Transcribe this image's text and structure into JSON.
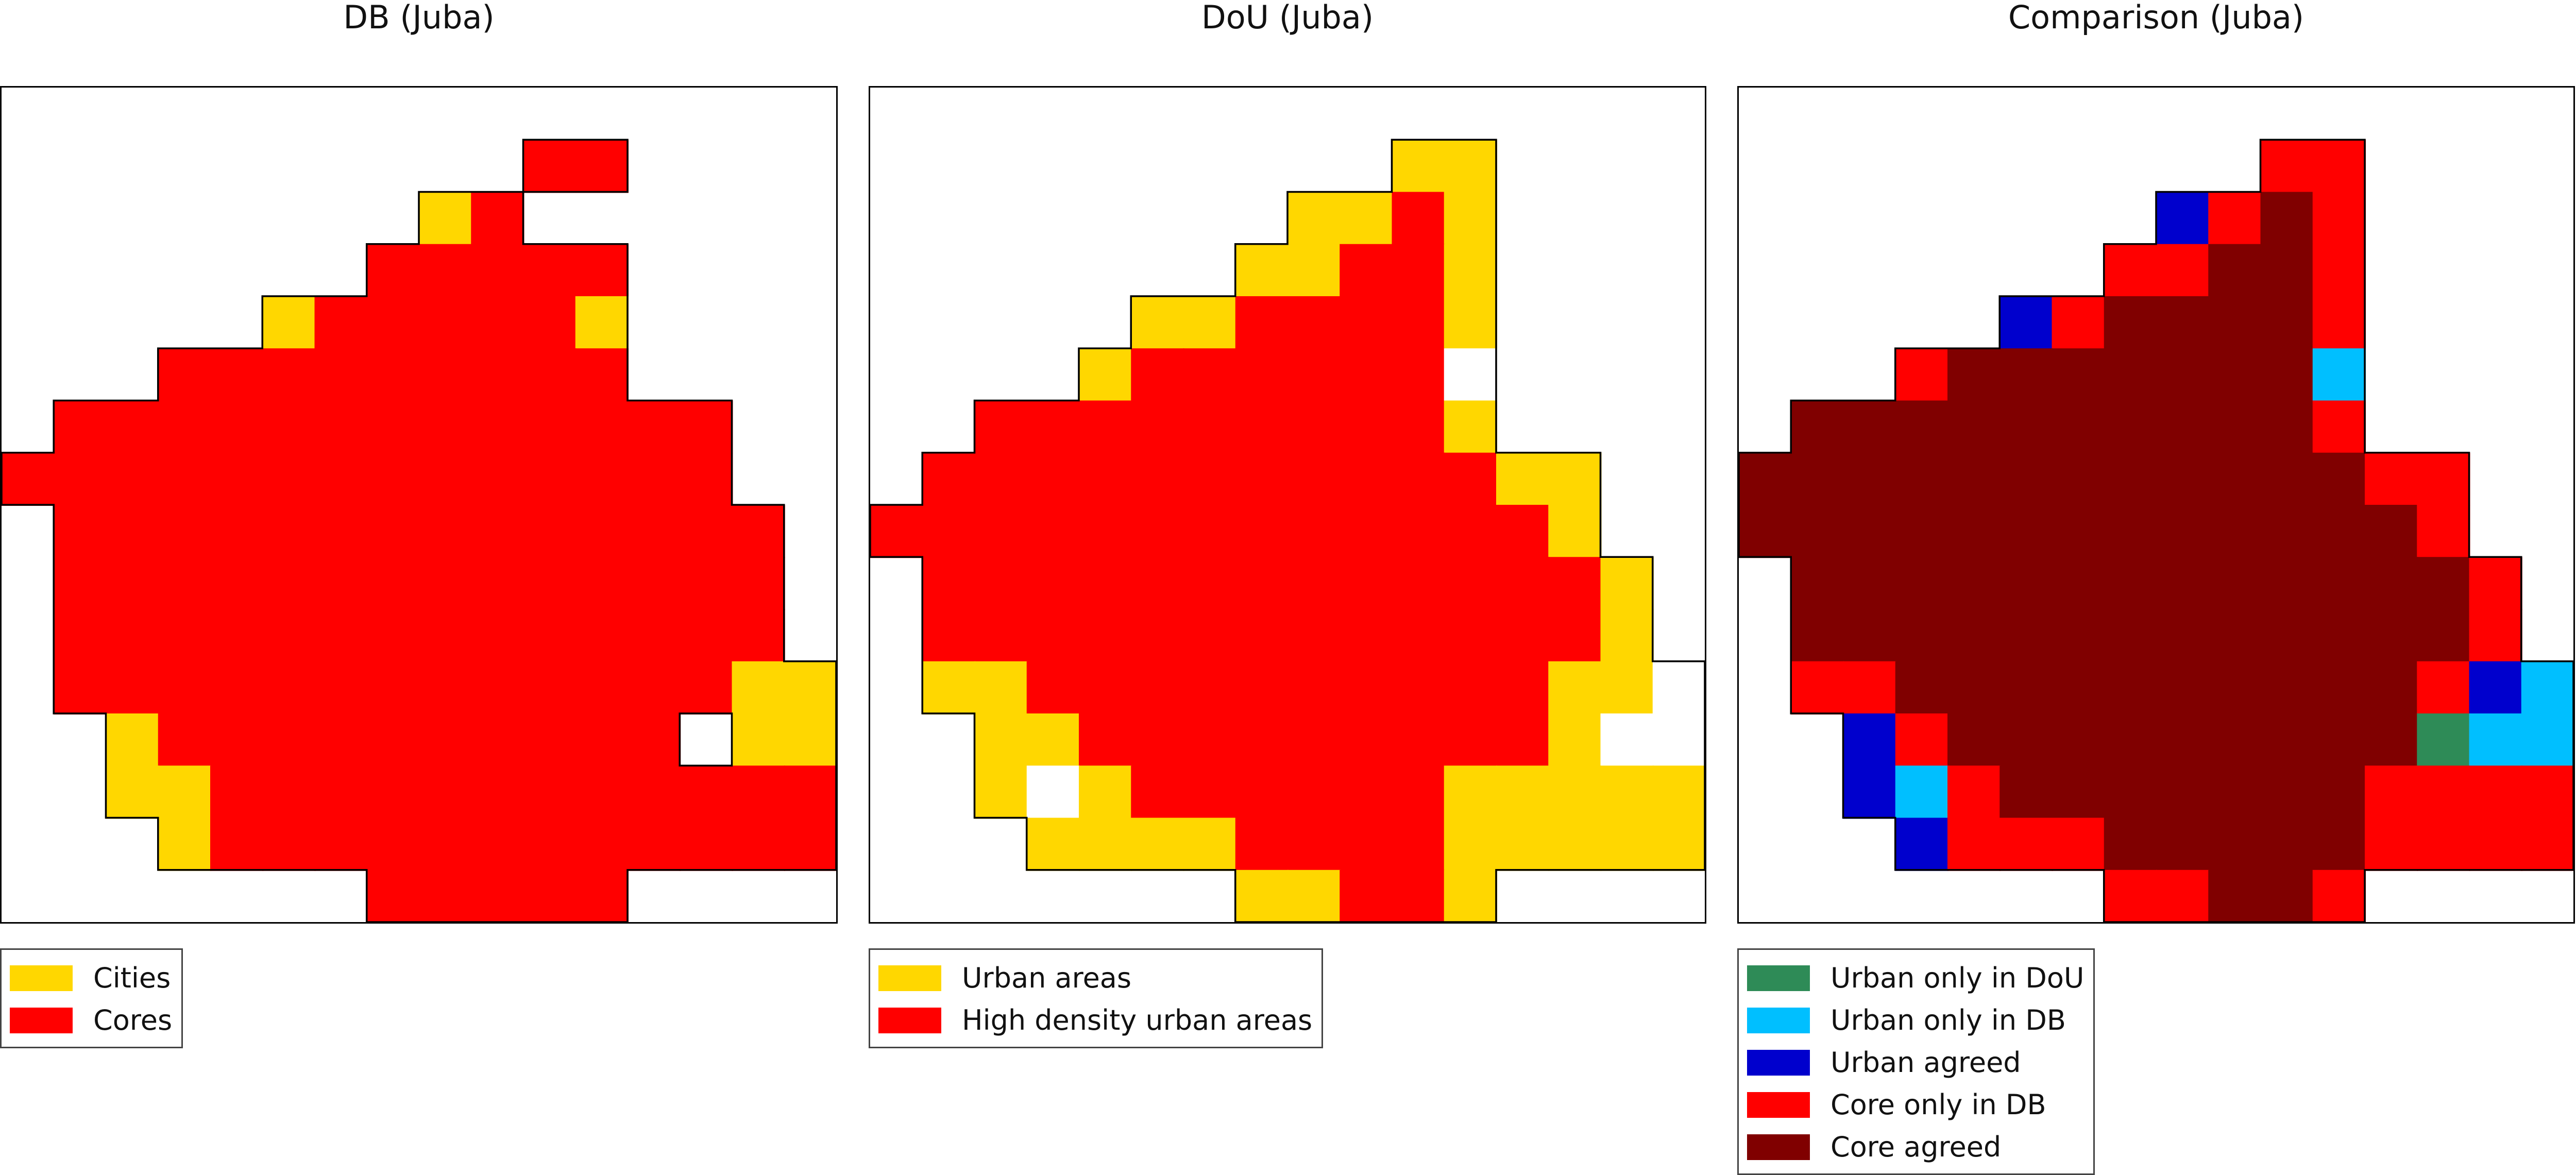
{
  "panels": [
    {
      "id": "db",
      "title": "DB (Juba)",
      "legend": [
        {
          "label": "Cities",
          "color": "#ffd700"
        },
        {
          "label": "Cores",
          "color": "#ff0000"
        }
      ],
      "grid": {
        "rows": 16,
        "cols": 16,
        "cells": [
          "................",
          "..........CC....",
          "........YC......",
          ".......CCCCC....",
          ".....YCCCCCY....",
          "...CCCCCCCCC....",
          ".CCCCCCCCCCCCC..",
          "CCCCCCCCCCCCCC..",
          ".CCCCCCCCCCCCCC.",
          ".CCCCCCCCCCCCCC.",
          ".CCCCCCCCCCCCCC.",
          ".CCCCCCCCCCCCCYY",
          "..YCCCCCCCCCC.YY",
          "..YYCCCCCCCCCCCC",
          "...YCCCCCCCCCCCC",
          ".......CCCCC...."
        ],
        "colors": {
          "Y": "#ffd700",
          "C": "#ff0000",
          "E": "#ffffff"
        }
      }
    },
    {
      "id": "dou",
      "title": "DoU (Juba)",
      "legend": [
        {
          "label": "Urban areas",
          "color": "#ffd700"
        },
        {
          "label": "High density urban areas",
          "color": "#ff0000"
        }
      ],
      "grid": {
        "rows": 16,
        "cols": 16,
        "cells": [
          "................",
          "..........YY....",
          "........YYCY....",
          ".......YYCCY....",
          ".....YYCCCCY....",
          "....YCCCCCCE....",
          "..CCCCCCCCCY....",
          ".CCCCCCCCCCCYY..",
          "CCCCCCCCCCCCCY..",
          ".CCCCCCCCCCCCCY.",
          ".CCCCCCCCCCCCCY.",
          ".YYCCCCCCCCCCYYE",
          "..YYCCCCCCCCCYEE",
          "..YEYCCCCCCYYYYY",
          "...YYYYCCCCYYYYY",
          ".......YYCCY...."
        ],
        "colors": {
          "Y": "#ffd700",
          "C": "#ff0000",
          "E": "#ffffff"
        }
      }
    },
    {
      "id": "comparison",
      "title": "Comparison (Juba)",
      "legend": [
        {
          "label": "Urban only in DoU",
          "color": "#2e8b57"
        },
        {
          "label": "Urban only in DB",
          "color": "#00bfff"
        },
        {
          "label": "Urban agreed",
          "color": "#0000cd"
        },
        {
          "label": "Core only in DB",
          "color": "#ff0000"
        },
        {
          "label": "Core agreed",
          "color": "#800000"
        }
      ],
      "grid": {
        "rows": 16,
        "cols": 16,
        "cells": [
          "................",
          "..........RR....",
          "........URAR....",
          ".......RRAAR....",
          ".....URAAAAR....",
          "...RAAAAAAAS....",
          ".AAAAAAAAAAR....",
          "AAAAAAAAAAAARR..",
          "AAAAAAAAAAAAAR..",
          ".AAAAAAAAAAAAAR.",
          ".AAAAAAAAAAAAAR.",
          ".RRAAAAAAAAAARUS",
          "..URAAAAAAAAAGSS",
          "..USRAAAAAAARRRR",
          "...URRRAAAAARRRR",
          ".......RRAAR...."
        ],
        "colors": {
          "G": "#2e8b57",
          "S": "#00bfff",
          "U": "#0000cd",
          "R": "#ff0000",
          "A": "#800000"
        }
      }
    }
  ]
}
